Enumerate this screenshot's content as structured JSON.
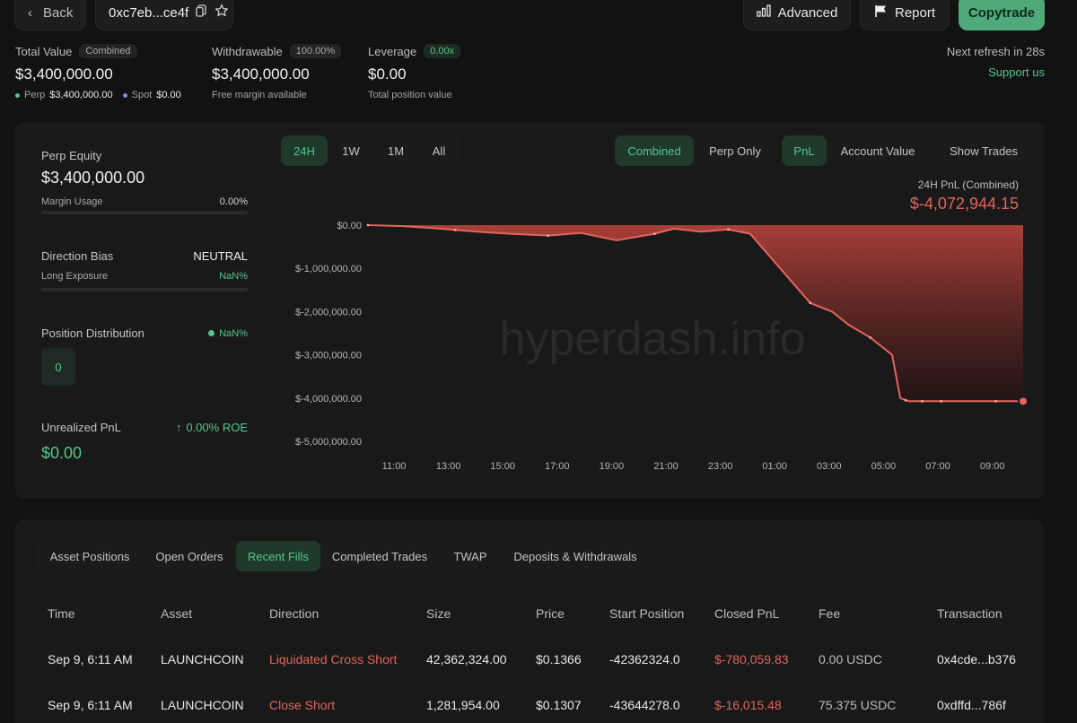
{
  "topbar": {
    "back_label": "Back",
    "address": "0xc7eb...ce4f",
    "advanced_label": "Advanced",
    "report_label": "Report",
    "copytrade_label": "Copytrade"
  },
  "summary": {
    "total_value": {
      "label": "Total Value",
      "badge": "Combined",
      "value": "$3,400,000.00",
      "perp_label": "Perp",
      "perp_value": "$3,400,000.00",
      "spot_label": "Spot",
      "spot_value": "$0.00"
    },
    "withdrawable": {
      "label": "Withdrawable",
      "badge": "100.00%",
      "value": "$3,400,000.00",
      "sub": "Free margin available"
    },
    "leverage": {
      "label": "Leverage",
      "badge": "0.00x",
      "value": "$0.00",
      "sub": "Total position value"
    },
    "refresh_text": "Next refresh in 28s",
    "support_label": "Support us"
  },
  "left_panel": {
    "perp_equity_label": "Perp Equity",
    "perp_equity_value": "$3,400,000.00",
    "margin_usage_label": "Margin Usage",
    "margin_usage_value": "0.00%",
    "direction_bias_label": "Direction Bias",
    "direction_bias_value": "NEUTRAL",
    "long_exposure_label": "Long Exposure",
    "long_exposure_value": "NaN%",
    "position_distribution_label": "Position Distribution",
    "position_distribution_value": "NaN%",
    "position_count": "0",
    "unrealized_pnl_label": "Unrealized PnL",
    "roe_value": "0.00% ROE",
    "unrealized_pnl_value": "$0.00"
  },
  "chart_controls": {
    "timeframes": [
      "24H",
      "1W",
      "1M",
      "All"
    ],
    "scope": [
      "Combined",
      "Perp Only"
    ],
    "metric": [
      "PnL",
      "Account Value"
    ],
    "show_trades_label": "Show Trades",
    "header_title": "24H PnL (Combined)",
    "header_value": "$-4,072,944.15"
  },
  "watermark": "hyperdash.info",
  "chart_data": {
    "type": "area",
    "title": "24H PnL (Combined)",
    "x": [
      0.0,
      1.2,
      2.2,
      3.2,
      4.2,
      5.2,
      6.6,
      7.8,
      9.1,
      10.5,
      11.2,
      12.2,
      13.2,
      14.0,
      15.1,
      16.2,
      17.0,
      17.6,
      18.4,
      19.2,
      19.5,
      19.7,
      19.8,
      20.1,
      20.3,
      20.5,
      20.7,
      21.0,
      21.2,
      22.2,
      23.0,
      24.0
    ],
    "y": [
      0,
      -20000,
      -60000,
      -110000,
      -160000,
      -200000,
      -240000,
      -180000,
      -350000,
      -200000,
      -80000,
      -150000,
      -100000,
      -200000,
      -1000000,
      -1800000,
      -2000000,
      -2300000,
      -2600000,
      -3000000,
      -4000000,
      -4050000,
      -4072944,
      -4072944,
      -4072944,
      -4072944,
      -4072944,
      -4072944,
      -4072944,
      -4072944,
      -4072944,
      -4072944
    ],
    "y_ticks": [
      "$0.00",
      "$-1,000,000.00",
      "$-2,000,000.00",
      "$-3,000,000.00",
      "$-4,000,000.00",
      "$-5,000,000.00"
    ],
    "x_ticks": [
      "11:00",
      "13:00",
      "15:00",
      "17:00",
      "19:00",
      "21:00",
      "23:00",
      "01:00",
      "03:00",
      "05:00",
      "07:00",
      "09:00"
    ],
    "ylim": [
      -5000000,
      0
    ],
    "series_color": "#e3655d"
  },
  "table": {
    "tabs": [
      "Asset Positions",
      "Open Orders",
      "Recent Fills",
      "Completed Trades",
      "TWAP",
      "Deposits & Withdrawals"
    ],
    "active_tab": "Recent Fills",
    "columns": [
      "Time",
      "Asset",
      "Direction",
      "Size",
      "Price",
      "Start Position",
      "Closed PnL",
      "Fee",
      "Transaction"
    ],
    "rows": [
      [
        "Sep 9, 6:11 AM",
        "LAUNCHCOIN",
        "Liquidated Cross Short",
        "42,362,324.00",
        "$0.1366",
        "-42362324.0",
        "$-780,059.83",
        "0.00 USDC",
        "0x4cde...b376"
      ],
      [
        "Sep 9, 6:11 AM",
        "LAUNCHCOIN",
        "Close Short",
        "1,281,954.00",
        "$0.1307",
        "-43644278.0",
        "$-16,015.48",
        "75.375 USDC",
        "0xdffd...786f"
      ]
    ]
  }
}
